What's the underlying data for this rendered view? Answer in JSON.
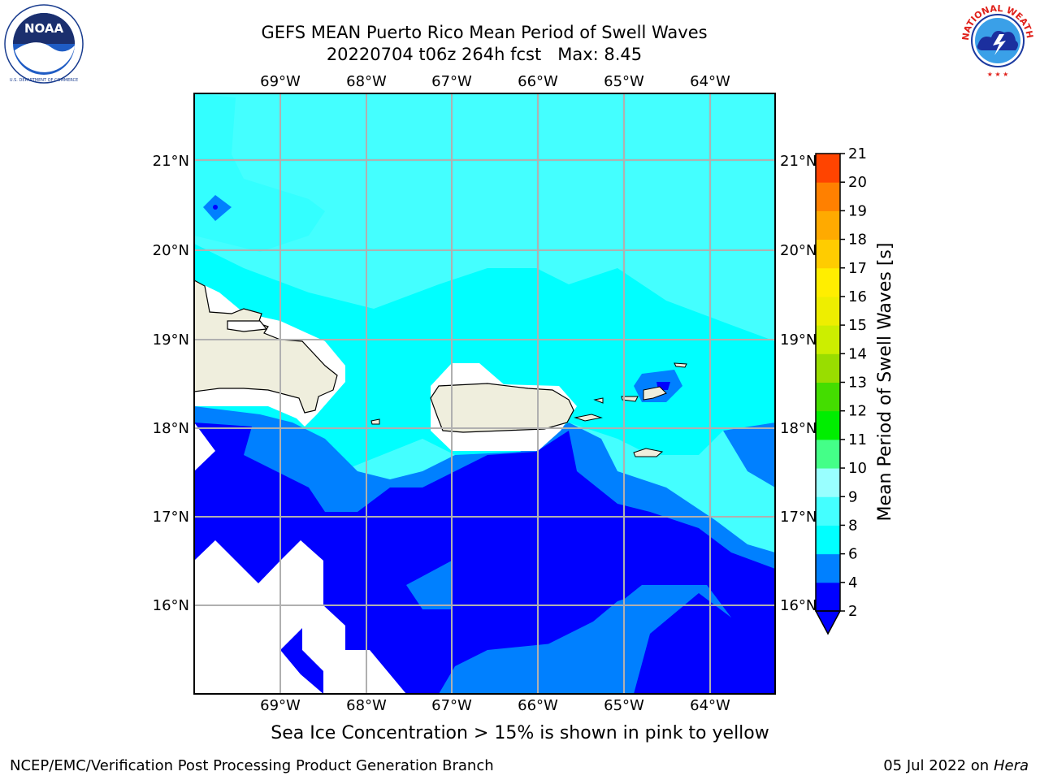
{
  "header": {
    "title_line1": "GEFS MEAN Puerto Rico Mean Period of Swell Waves",
    "title_line2": "20220704 t06z 264h fcst   Max: 8.45"
  },
  "logos": {
    "left": {
      "name": "noaa-logo",
      "text": "NOAA",
      "ring_text": "NATIONAL OCEANIC AND ATMOSPHERIC ADMINISTRATION · U.S. DEPARTMENT OF COMMERCE"
    },
    "right": {
      "name": "nws-logo",
      "ring_text": "NATIONAL WEATHER SERVICE"
    }
  },
  "map": {
    "lon_labels": [
      "69°W",
      "68°W",
      "67°W",
      "66°W",
      "65°W",
      "64°W"
    ],
    "lat_labels": [
      "21°N",
      "20°N",
      "19°N",
      "18°N",
      "17°N",
      "16°N"
    ],
    "colors": {
      "band_2_4": "#0000ff",
      "band_4_6": "#0080ff",
      "band_6_8": "#00ffff",
      "band_8_9": "#44ffff",
      "land": "#efeedd",
      "no_data": "#ffffff",
      "grid": "#b0b0b0"
    }
  },
  "colorbar": {
    "label": "Mean Period of Swell Waves [s]",
    "ticks": [
      "2",
      "4",
      "6",
      "8",
      "9",
      "10",
      "11",
      "12",
      "13",
      "14",
      "15",
      "16",
      "17",
      "18",
      "19",
      "20",
      "21"
    ],
    "colors": [
      "#0000ff",
      "#0080ff",
      "#00ffff",
      "#44ffff",
      "#99ffff",
      "#44ff88",
      "#00ee00",
      "#44dd00",
      "#99dd00",
      "#ccee00",
      "#eeee00",
      "#ffee00",
      "#ffcc00",
      "#ffaa00",
      "#ff8000",
      "#ff4400",
      "#ff2000",
      "#ff0000"
    ]
  },
  "note": "Sea Ice Concentration > 15% is shown in pink to yellow",
  "footer": {
    "left": "NCEP/EMC/Verification Post Processing Product Generation Branch",
    "right_date": "05 Jul 2022 on",
    "right_machine": "Hera"
  }
}
